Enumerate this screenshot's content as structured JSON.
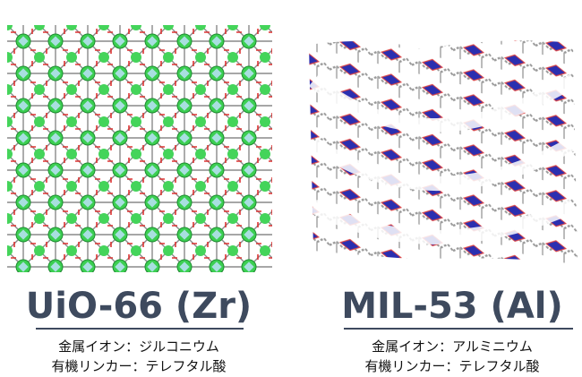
{
  "left": {
    "title": "UiO-66 (Zr)",
    "lines": [
      "金属イオン：ジルコニウム",
      "有機リンカー：テレフタル酸"
    ]
  },
  "right": {
    "title": "MIL-53 (Al)",
    "lines": [
      "金属イオン：アルミニウム",
      "有機リンカー：テレフタル酸"
    ]
  }
}
